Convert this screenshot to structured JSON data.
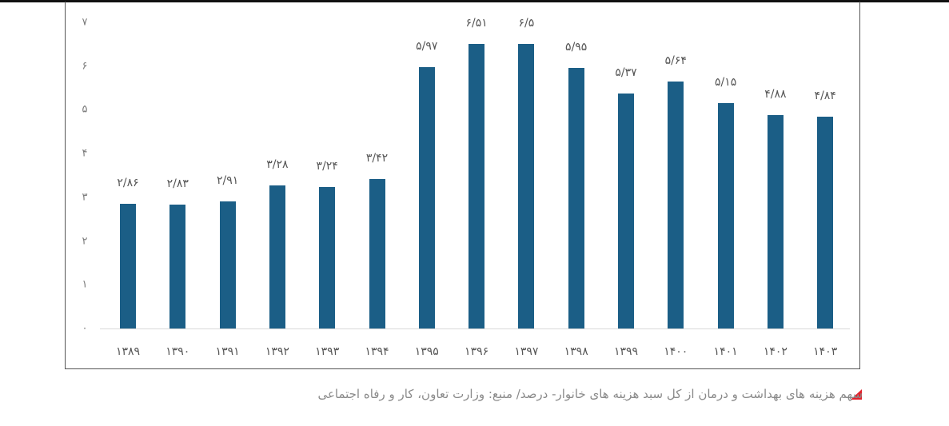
{
  "chart_data": {
    "type": "bar",
    "title": "",
    "xlabel": "",
    "ylabel": "",
    "ylim": [
      0,
      7
    ],
    "grid": false,
    "legend": null,
    "y_ticks": [
      "۰",
      "۱",
      "۲",
      "۳",
      "۴",
      "۵",
      "۶",
      "۷"
    ],
    "categories": [
      "۱۳۸۹",
      "۱۳۹۰",
      "۱۳۹۱",
      "۱۳۹۲",
      "۱۳۹۳",
      "۱۳۹۴",
      "۱۳۹۵",
      "۱۳۹۶",
      "۱۳۹۷",
      "۱۳۹۸",
      "۱۳۹۹",
      "۱۴۰۰",
      "۱۴۰۱",
      "۱۴۰۲",
      "۱۴۰۳"
    ],
    "categories_latin": [
      "1389",
      "1390",
      "1391",
      "1392",
      "1393",
      "1394",
      "1395",
      "1396",
      "1397",
      "1398",
      "1399",
      "1400",
      "1401",
      "1402",
      "1403"
    ],
    "values": [
      2.86,
      2.83,
      2.91,
      3.28,
      3.24,
      3.42,
      5.97,
      6.51,
      6.5,
      5.95,
      5.37,
      5.64,
      5.15,
      4.88,
      4.84
    ],
    "data_labels": [
      "۲/۸۶",
      "۲/۸۳",
      "۲/۹۱",
      "۳/۲۸",
      "۳/۲۴",
      "۳/۴۲",
      "۵/۹۷",
      "۶/۵۱",
      "۶/۵",
      "۵/۹۵",
      "۵/۳۷",
      "۵/۶۴",
      "۵/۱۵",
      "۴/۸۸",
      "۴/۸۴"
    ],
    "bar_color": "#1b5e86"
  },
  "caption": {
    "text": "سهم هزینه های بهداشت و درمان از کل سبد هزینه های خانوار- درصد/ منبع: وزارت تعاون، کار و رفاه اجتماعی",
    "marker_color": "#e3222b"
  }
}
